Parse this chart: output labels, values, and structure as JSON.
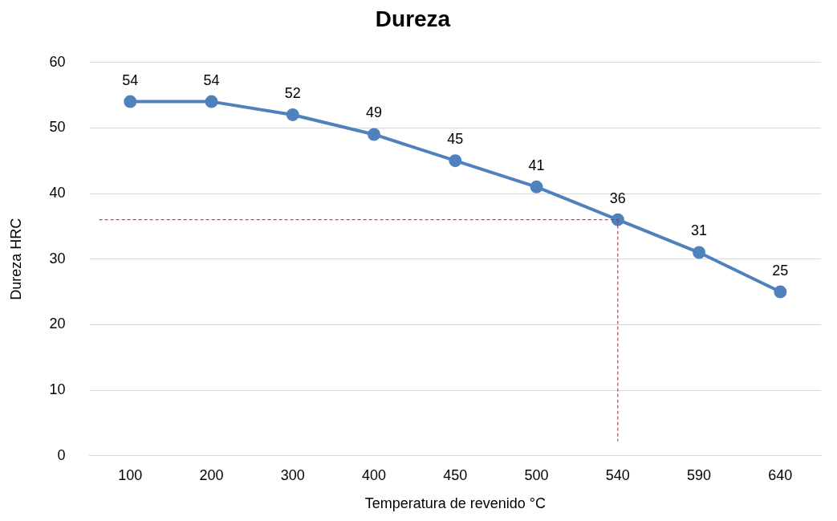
{
  "chart_data": {
    "type": "line",
    "title": "Dureza",
    "xlabel": "Temperatura de revenido °C",
    "ylabel": "Dureza HRC",
    "categories": [
      "100",
      "200",
      "300",
      "400",
      "450",
      "500",
      "540",
      "590",
      "640"
    ],
    "series": [
      {
        "color": "#4f81bd",
        "values": [
          54,
          54,
          52,
          49,
          45,
          41,
          36,
          31,
          25
        ]
      }
    ],
    "ylim": [
      0,
      60
    ],
    "yticks": [
      0,
      10,
      20,
      30,
      40,
      50,
      60
    ],
    "grid": "y",
    "legend": false,
    "marker": "circle",
    "line_style": "solid",
    "data_labels": true,
    "ref_lines": [
      {
        "axis": "y",
        "value": 36,
        "color": "#ff0000",
        "line_style": "dashed"
      },
      {
        "axis": "x",
        "value": "540",
        "color": "#ff0000",
        "line_style": "dashed"
      }
    ]
  }
}
